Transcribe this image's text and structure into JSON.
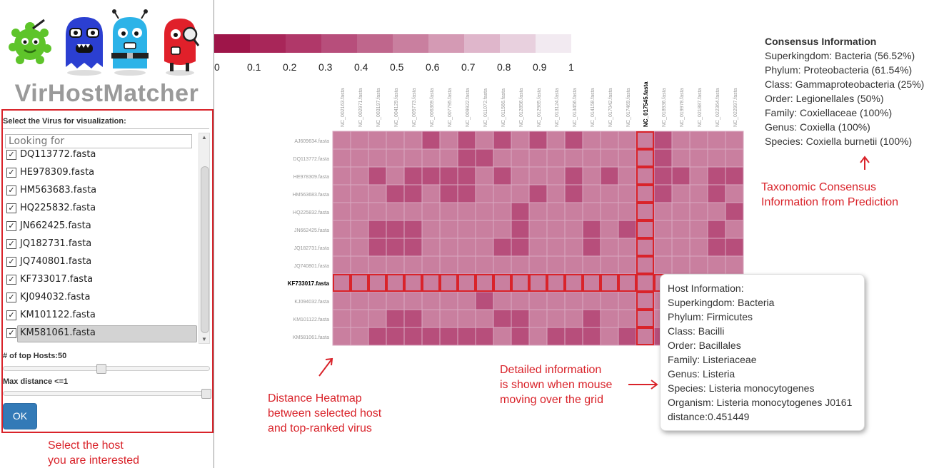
{
  "app": {
    "title": "VirHostMatcher"
  },
  "sidebar": {
    "select_label": "Select the Virus for visualization:",
    "search_placeholder": "Looking for",
    "items": [
      {
        "label": "DQ113772.fasta",
        "checked": true,
        "selected": false
      },
      {
        "label": "HE978309.fasta",
        "checked": true,
        "selected": false
      },
      {
        "label": "HM563683.fasta",
        "checked": true,
        "selected": false
      },
      {
        "label": "HQ225832.fasta",
        "checked": true,
        "selected": false
      },
      {
        "label": "JN662425.fasta",
        "checked": true,
        "selected": false
      },
      {
        "label": "JQ182731.fasta",
        "checked": true,
        "selected": false
      },
      {
        "label": "JQ740801.fasta",
        "checked": true,
        "selected": false
      },
      {
        "label": "KF733017.fasta",
        "checked": true,
        "selected": false
      },
      {
        "label": "KJ094032.fasta",
        "checked": true,
        "selected": false
      },
      {
        "label": "KM101122.fasta",
        "checked": true,
        "selected": false
      },
      {
        "label": "KM581061.fasta",
        "checked": true,
        "selected": true
      }
    ],
    "checkmark": "✓",
    "top_hosts_label": "# of top Hosts:50",
    "top_hosts_fraction": 0.47,
    "max_distance_label": "Max distance <=1",
    "max_distance_fraction": 1.0,
    "ok_label": "OK",
    "host_note_line1": "Select the host",
    "host_note_line2": "you are interested"
  },
  "colors": {
    "accent_red": "#d9232a",
    "ok_blue": "#337ab7",
    "colorbar": [
      "#9e1549",
      "#a82659",
      "#b03869",
      "#b74e7b",
      "#bf668c",
      "#c97f9f",
      "#d49ab4",
      "#dfb6cb",
      "#e8d0de",
      "#f2eaf1"
    ]
  },
  "colorbar": {
    "ticks": [
      "0",
      "0.1",
      "0.2",
      "0.3",
      "0.4",
      "0.5",
      "0.6",
      "0.7",
      "0.8",
      "0.9",
      "1"
    ]
  },
  "heatmap": {
    "columns": [
      "NC_002163.fasta",
      "NC_002971.fasta",
      "NC_003197.fasta",
      "NC_004129.fasta",
      "NC_005773.fasta",
      "NC_006369.fasta",
      "NC_007795.fasta",
      "NC_009922.fasta",
      "NC_011072.fasta",
      "NC_011566.fasta",
      "NC_012856.fasta",
      "NC_012985.fasta",
      "NC_013124.fasta",
      "NC_013456.fasta",
      "NC_014158.fasta",
      "NC_017042.fasta",
      "NC_017469.fasta",
      "NC_017545.fasta",
      "NC_018936.fasta",
      "NC_019978.fasta",
      "NC_021887.fasta",
      "NC_022364.fasta",
      "NC_022997.fasta"
    ],
    "rows": [
      "AJ609634.fasta",
      "DQ113772.fasta",
      "HE978309.fasta",
      "HM563683.fasta",
      "HQ225832.fasta",
      "JN662425.fasta",
      "JQ182731.fasta",
      "JQ740801.fasta",
      "KF733017.fasta",
      "KJ094032.fasta",
      "KM101122.fasta",
      "KM581061.fasta"
    ],
    "highlight_row": 8,
    "highlight_col": 17,
    "dark_cells": [
      [
        0,
        5
      ],
      [
        0,
        7
      ],
      [
        0,
        9
      ],
      [
        0,
        11
      ],
      [
        0,
        13
      ],
      [
        0,
        18
      ],
      [
        1,
        7
      ],
      [
        1,
        8
      ],
      [
        1,
        18
      ],
      [
        2,
        2
      ],
      [
        2,
        4
      ],
      [
        2,
        5
      ],
      [
        2,
        6
      ],
      [
        2,
        7
      ],
      [
        2,
        9
      ],
      [
        2,
        13
      ],
      [
        2,
        15
      ],
      [
        2,
        18
      ],
      [
        2,
        19
      ],
      [
        2,
        21
      ],
      [
        2,
        22
      ],
      [
        3,
        3
      ],
      [
        3,
        4
      ],
      [
        3,
        6
      ],
      [
        3,
        7
      ],
      [
        3,
        11
      ],
      [
        3,
        13
      ],
      [
        3,
        18
      ],
      [
        3,
        21
      ],
      [
        4,
        10
      ],
      [
        4,
        22
      ],
      [
        5,
        2
      ],
      [
        5,
        3
      ],
      [
        5,
        4
      ],
      [
        5,
        10
      ],
      [
        5,
        14
      ],
      [
        5,
        16
      ],
      [
        5,
        21
      ],
      [
        6,
        2
      ],
      [
        6,
        3
      ],
      [
        6,
        4
      ],
      [
        6,
        9
      ],
      [
        6,
        10
      ],
      [
        6,
        14
      ],
      [
        6,
        21
      ],
      [
        6,
        22
      ],
      [
        9,
        8
      ],
      [
        10,
        3
      ],
      [
        10,
        4
      ],
      [
        10,
        9
      ],
      [
        10,
        10
      ],
      [
        10,
        14
      ],
      [
        11,
        2
      ],
      [
        11,
        3
      ],
      [
        11,
        4
      ],
      [
        11,
        5
      ],
      [
        11,
        6
      ],
      [
        11,
        7
      ],
      [
        11,
        8
      ],
      [
        11,
        10
      ],
      [
        11,
        12
      ],
      [
        11,
        13
      ],
      [
        11,
        14
      ],
      [
        11,
        16
      ],
      [
        11,
        18
      ],
      [
        11,
        19
      ],
      [
        11,
        20
      ],
      [
        11,
        21
      ],
      [
        11,
        22
      ]
    ]
  },
  "consensus": {
    "heading": "Consensus Information",
    "lines": [
      "Superkingdom: Bacteria (56.52%)",
      "Phylum: Proteobacteria (61.54%)",
      "Class: Gammaproteobacteria (25%)",
      "Order: Legionellales (50%)",
      "Family: Coxiellaceae (100%)",
      "Genus: Coxiella (100%)",
      "Species: Coxiella burnetii (100%)"
    ]
  },
  "annotations": {
    "taxonomic_line1": "Taxonomic Consensus",
    "taxonomic_line2": "Information from Prediction",
    "heatmap_line1": "Distance Heatmap",
    "heatmap_line2": "between selected host",
    "heatmap_line3": "and top-ranked virus",
    "detail_line1": "Detailed information",
    "detail_line2": "is shown when mouse",
    "detail_line3": "moving over the grid"
  },
  "tooltip": {
    "lines": [
      "Host Information:",
      "Superkingdom: Bacteria",
      "Phylum: Firmicutes",
      "Class: Bacilli",
      "Order: Bacillales",
      "Family: Listeriaceae",
      "Genus: Listeria",
      "Species: Listeria monocytogenes",
      "Organism: Listeria monocytogenes J0161",
      "distance:0.451449"
    ]
  }
}
